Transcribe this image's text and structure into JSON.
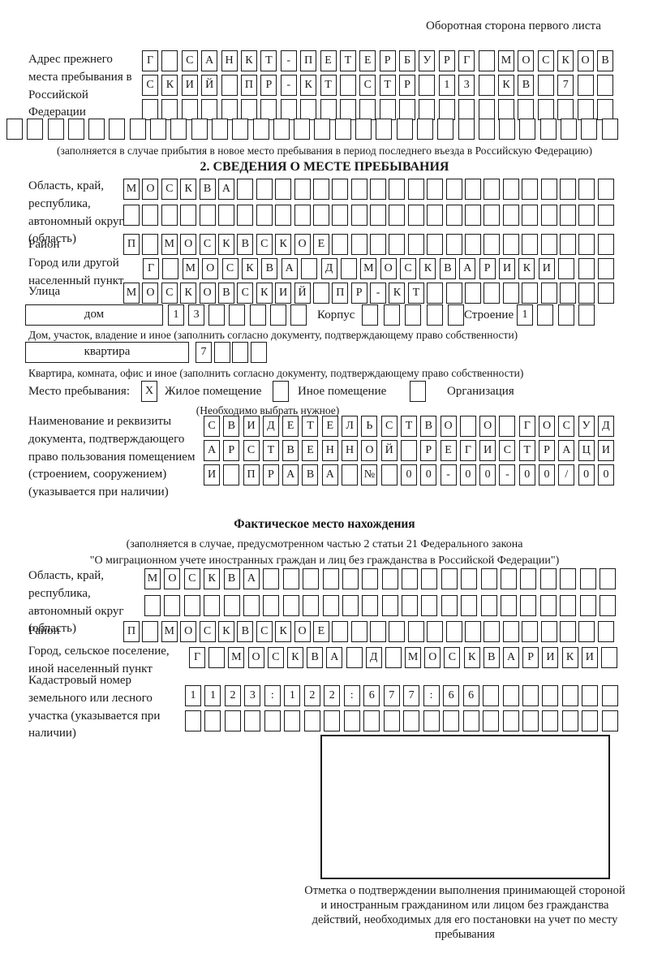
{
  "page_note": "Оборотная сторона первого листа",
  "prev_address": {
    "label": "Адрес прежнего места пребывания в Российской Федерации",
    "row1": {
      "text": "Г САНКТ-ПЕТЕРБУРГ МОСКОВ",
      "count": 24
    },
    "row2": {
      "text": "СКИЙ ПР-КТ СТР 13 КВ 7",
      "count": 24
    },
    "row3": {
      "text": "",
      "count": 24
    },
    "row4": {
      "text": "",
      "count": 30
    },
    "caption": "(заполняется в случае прибытия в новое место пребывания в период последнего въезда в Российскую Федерацию)"
  },
  "section2": {
    "title": "2. СВЕДЕНИЯ О МЕСТЕ ПРЕБЫВАНИЯ",
    "region": {
      "label": "Область, край, республика, автономный округ (область)",
      "row1": {
        "text": "МОСКВА",
        "count": 26
      },
      "row2": {
        "text": "",
        "count": 26
      }
    },
    "district": {
      "label": "Район",
      "row": {
        "text": "П МОСКВСКОЕ",
        "count": 26
      }
    },
    "city": {
      "label": "Город или другой населенный пункт",
      "row": {
        "text": "Г МОСКВА Д МОСКВАРИКИ",
        "count": 24
      }
    },
    "street": {
      "label": "Улица",
      "row": {
        "text": "МОСКОВСКИЙ ПР-КТ",
        "count": 26
      }
    },
    "house": {
      "box_label": "дом",
      "cells": {
        "text": "13",
        "count": 7
      },
      "korpus_label": "Корпус",
      "korpus_cells": {
        "text": "",
        "count": 5
      },
      "stroenie_label": "Строение",
      "stroenie_cells": {
        "text": "1",
        "count": 4
      },
      "caption": "Дом, участок, владение и иное (заполнить согласно документу, подтверждающему право собственности)"
    },
    "apartment": {
      "box_label": "квартира",
      "cells": {
        "text": "7",
        "count": 4
      },
      "caption": "Квартира, комната, офис и иное (заполнить согласно документу, подтверждающему право собственности)"
    },
    "stay_type": {
      "label": "Место пребывания:",
      "opt1_box": {
        "text": "X",
        "count": 1
      },
      "opt1": "Жилое помещение",
      "opt2_box": {
        "text": "",
        "count": 1
      },
      "opt2": "Иное помещение",
      "opt3_box": {
        "text": "",
        "count": 1
      },
      "opt3": "Организация",
      "caption": "(Необходимо выбрать нужное)"
    },
    "doc": {
      "label": "Наименование и реквизиты документа, подтверждающего право пользования помещением (строением, сооружением) (указывается при наличии)",
      "row1": {
        "text": "СВИДЕТЕЛЬСТВО О ГОСУД",
        "count": 21
      },
      "row2": {
        "text": "АРСТВЕННОЙ РЕГИСТРАЦИ",
        "count": 21
      },
      "row3": {
        "text": "И ПРАВА № 00-00-00/000",
        "count": 21
      }
    }
  },
  "actual_location": {
    "title": "Фактическое место нахождения",
    "caption_line1": "(заполняется в случае, предусмотренном частью 2 статьи 21 Федерального закона",
    "caption_line2": "\"О миграционном учете иностранных граждан и лиц без гражданства в Российской Федерации\")",
    "region": {
      "label": "Область, край, республика, автономный округ (область)",
      "row1": {
        "text": "МОСКВА",
        "count": 24
      },
      "row2": {
        "text": "",
        "count": 24
      }
    },
    "district": {
      "label": "Район",
      "row": {
        "text": "П МОСКВСКОЕ",
        "count": 26
      }
    },
    "city": {
      "label": "Город, сельское поселение, иной населенный пункт",
      "row": {
        "text": "Г МОСКВА Д МОСКВАРИКИ",
        "count": 22
      }
    },
    "cadastre": {
      "label": "Кадастровый номер земельного или лесного участка (указывается при наличии)",
      "row1": {
        "text": "1123:122:677:66",
        "count": 22
      },
      "row2": {
        "text": "",
        "count": 22
      }
    },
    "mark_caption": "Отметка о подтверждении выполнения принимающей стороной и иностранным гражданином или лицом без гражданства действий, необходимых для его постановки на учет по месту пребывания"
  }
}
